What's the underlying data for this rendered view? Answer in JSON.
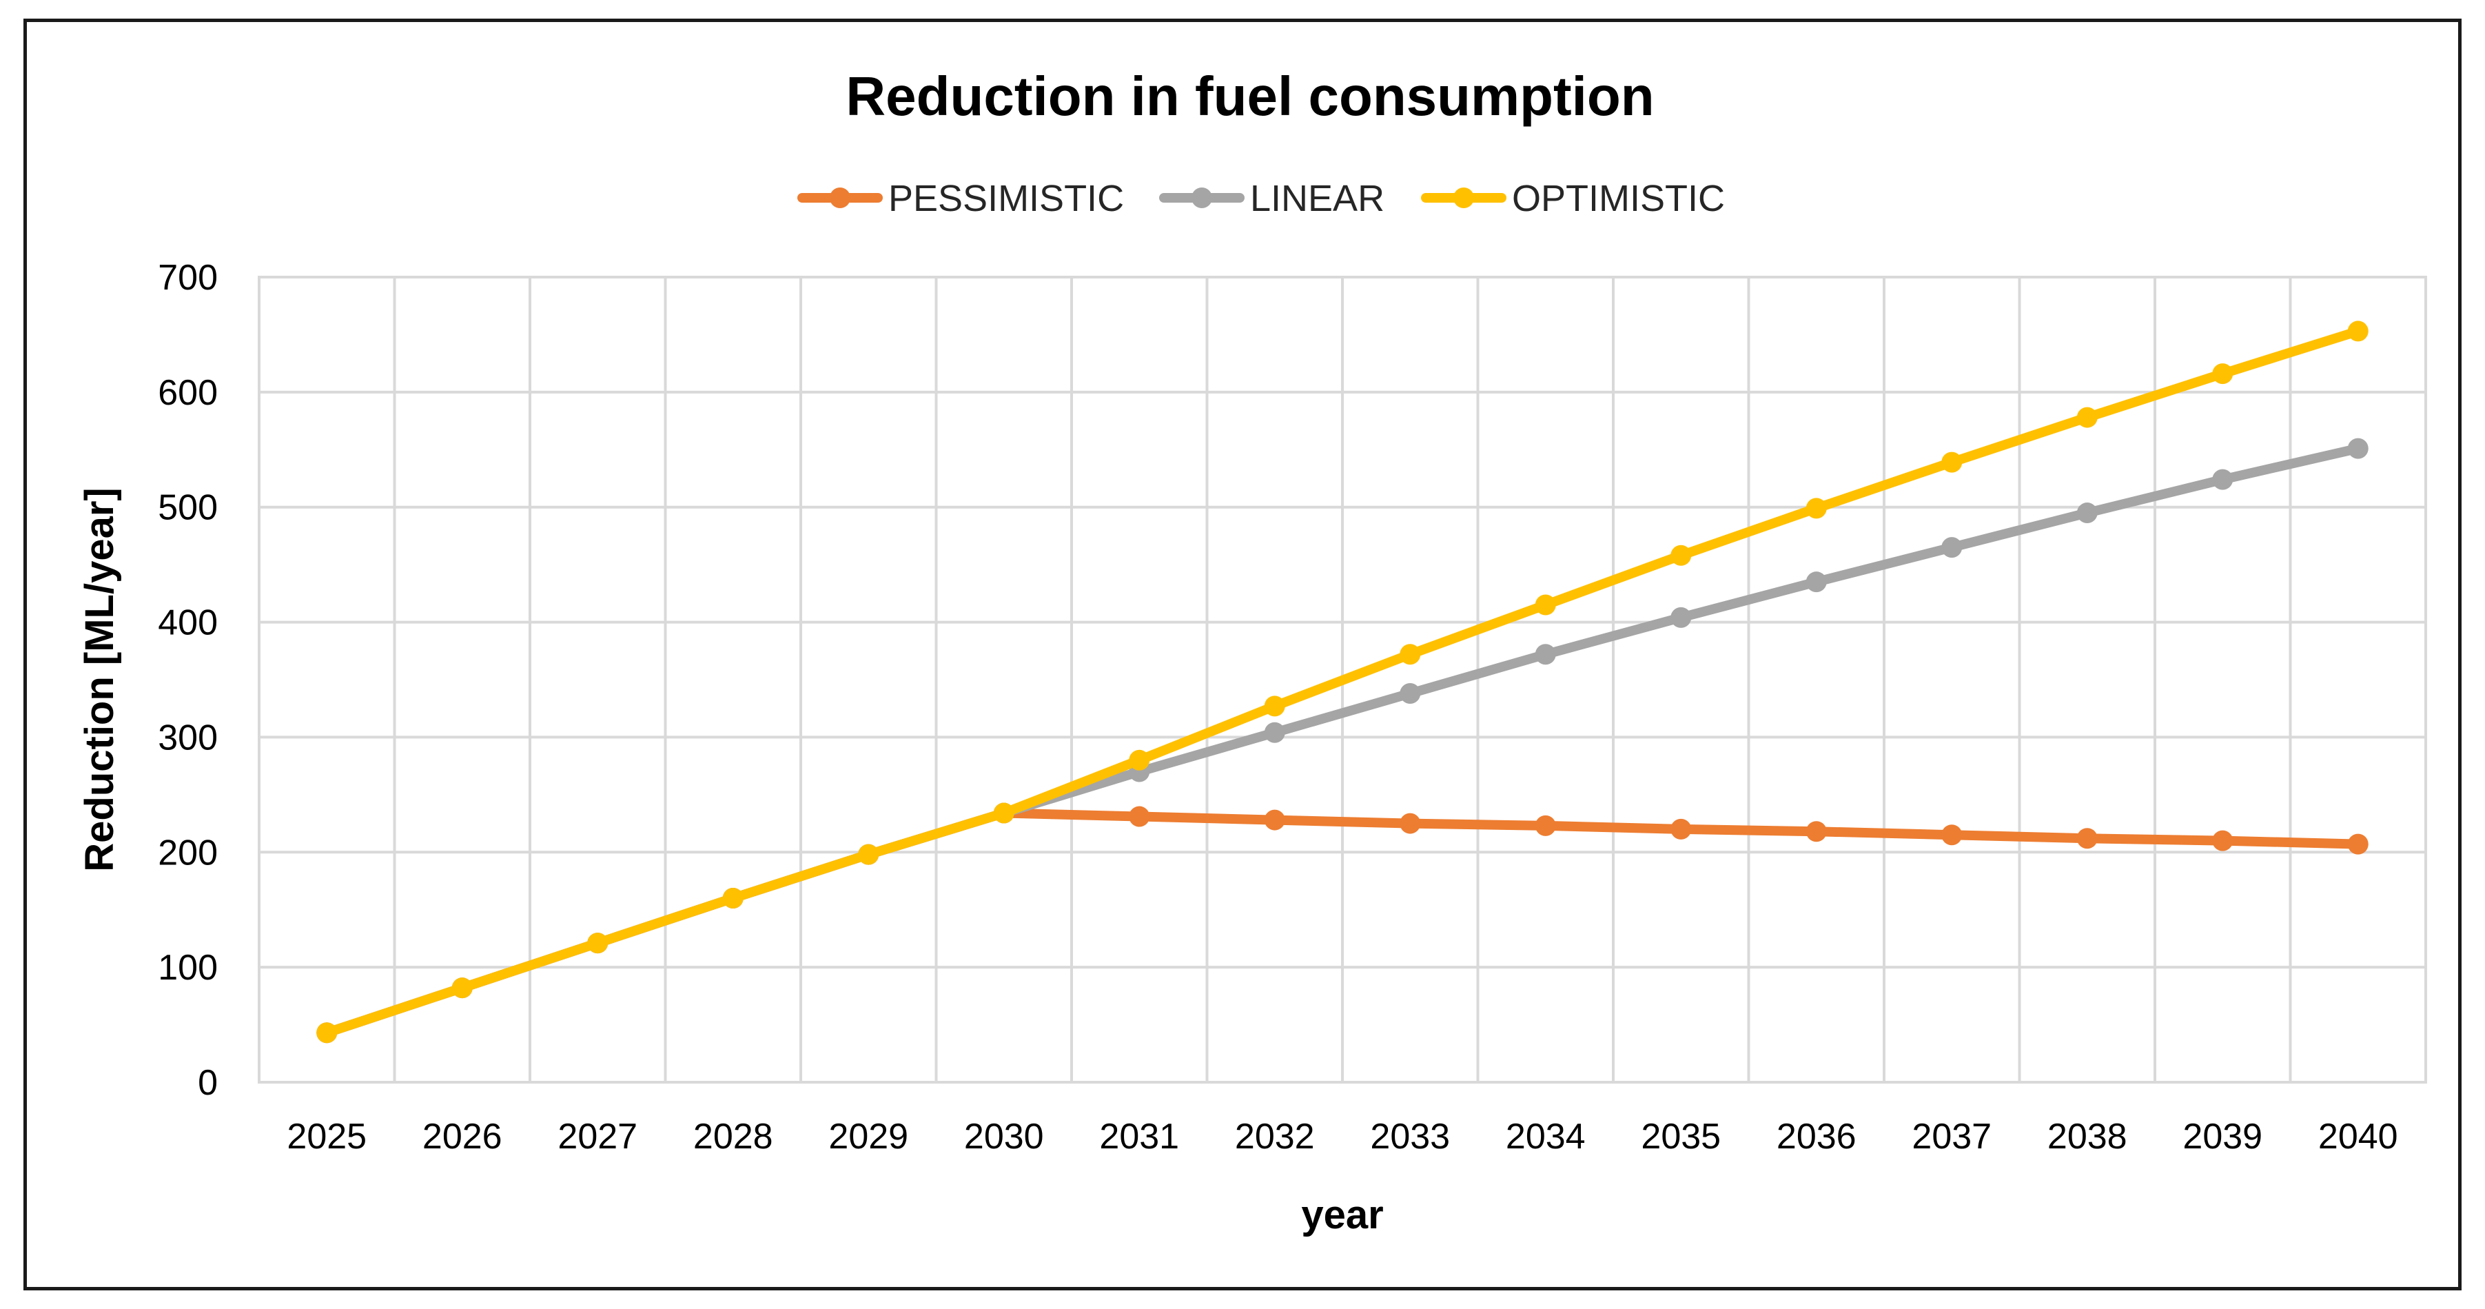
{
  "chart_data": {
    "type": "line",
    "title": "Reduction in fuel consumption",
    "xlabel": "year",
    "ylabel": "Reduction [ML/year]",
    "categories": [
      "2025",
      "2026",
      "2027",
      "2028",
      "2029",
      "2030",
      "2031",
      "2032",
      "2033",
      "2034",
      "2035",
      "2036",
      "2037",
      "2038",
      "2039",
      "2040"
    ],
    "ylim": [
      0,
      700
    ],
    "yticks": [
      "0",
      "100",
      "200",
      "300",
      "400",
      "500",
      "600",
      "700"
    ],
    "grid": true,
    "legend_position": "top-center",
    "series": [
      {
        "name": "PESSIMISTIC",
        "color": "#ED7D31",
        "values": [
          43,
          82,
          121,
          160,
          198,
          234,
          231,
          228,
          225,
          223,
          220,
          218,
          215,
          212,
          210,
          207
        ]
      },
      {
        "name": "LINEAR",
        "color": "#A5A5A5",
        "values": [
          43,
          82,
          121,
          160,
          198,
          234,
          270,
          304,
          338,
          372,
          404,
          435,
          465,
          495,
          524,
          551
        ]
      },
      {
        "name": "OPTIMISTIC",
        "color": "#FFC000",
        "values": [
          43,
          82,
          121,
          160,
          198,
          234,
          280,
          327,
          372,
          415,
          458,
          499,
          539,
          578,
          616,
          653
        ]
      }
    ]
  }
}
